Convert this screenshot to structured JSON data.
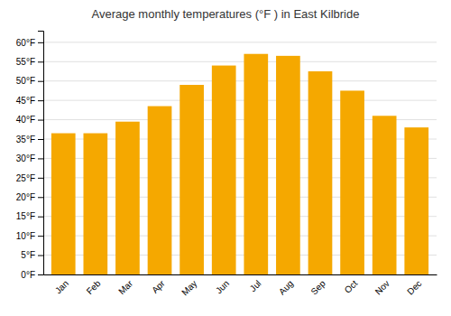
{
  "chart_data": {
    "type": "bar",
    "title": "Average monthly temperatures (°F ) in East Kilbride",
    "categories": [
      "Jan",
      "Feb",
      "Mar",
      "Apr",
      "May",
      "Jun",
      "Jul",
      "Aug",
      "Sep",
      "Oct",
      "Nov",
      "Dec"
    ],
    "values": [
      36.5,
      36.5,
      39.5,
      43.5,
      49.0,
      54.0,
      57.0,
      56.5,
      52.5,
      47.5,
      41.0,
      38.0
    ],
    "color": "#F5A800",
    "ylim": [
      0,
      63
    ],
    "yticks": [
      {
        "value": 0,
        "label": "0°F"
      },
      {
        "value": 5,
        "label": "5°F"
      },
      {
        "value": 10,
        "label": "10°F"
      },
      {
        "value": 15,
        "label": "15°F"
      },
      {
        "value": 20,
        "label": "20°F"
      },
      {
        "value": 25,
        "label": "25°F"
      },
      {
        "value": 30,
        "label": "30°F"
      },
      {
        "value": 35,
        "label": "35°F"
      },
      {
        "value": 40,
        "label": "40°F"
      },
      {
        "value": 45,
        "label": "45°F"
      },
      {
        "value": 50,
        "label": "50°F"
      },
      {
        "value": 55,
        "label": "55°F"
      },
      {
        "value": 60,
        "label": "60°F"
      }
    ],
    "grid": true
  }
}
